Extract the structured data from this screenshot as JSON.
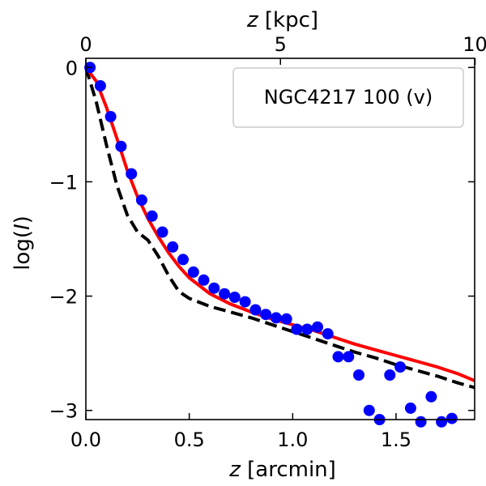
{
  "chart_data": {
    "type": "scatter",
    "title": "",
    "xlabel": {
      "var": "z",
      "unit": " [arcmin]"
    },
    "ylabel": {
      "prefix": "log(",
      "var": "I",
      "suffix": ")"
    },
    "top_xlabel": {
      "var": "z",
      "unit": " [kpc]"
    },
    "xlim": [
      0.0,
      1.88
    ],
    "ylim": [
      -3.08,
      0.08
    ],
    "x_ticks": [
      {
        "value": 0.0,
        "label": "0.0"
      },
      {
        "value": 0.5,
        "label": "0.5"
      },
      {
        "value": 1.0,
        "label": "1.0"
      },
      {
        "value": 1.5,
        "label": "1.5"
      }
    ],
    "y_ticks": [
      {
        "value": 0,
        "label": "0"
      },
      {
        "value": -1,
        "label": "−1"
      },
      {
        "value": -2,
        "label": "−2"
      },
      {
        "value": -3,
        "label": "−3"
      }
    ],
    "top_ticks": [
      {
        "value": 0.0,
        "label": "0"
      },
      {
        "value": 0.941,
        "label": "5"
      },
      {
        "value": 1.882,
        "label": "10"
      }
    ],
    "legend": {
      "label": "NGC4217 100 (v)",
      "location": "upper right"
    },
    "series": [
      {
        "name": "data",
        "kind": "scatter",
        "color": "#0000ff",
        "x": [
          0.02,
          0.07,
          0.12,
          0.17,
          0.22,
          0.27,
          0.32,
          0.37,
          0.42,
          0.47,
          0.52,
          0.57,
          0.62,
          0.67,
          0.72,
          0.77,
          0.82,
          0.87,
          0.92,
          0.97,
          1.02,
          1.07,
          1.12,
          1.17,
          1.22,
          1.27,
          1.32,
          1.37,
          1.42,
          1.47,
          1.52,
          1.57,
          1.62,
          1.67,
          1.72,
          1.77
        ],
        "y": [
          0.0,
          -0.16,
          -0.43,
          -0.69,
          -0.93,
          -1.16,
          -1.3,
          -1.44,
          -1.57,
          -1.68,
          -1.79,
          -1.86,
          -1.93,
          -1.98,
          -2.01,
          -2.05,
          -2.12,
          -2.16,
          -2.19,
          -2.2,
          -2.29,
          -2.29,
          -2.27,
          -2.33,
          -2.53,
          -2.53,
          -2.69,
          -3.0,
          -3.08,
          -2.69,
          -2.62,
          -2.98,
          -3.1,
          -2.88,
          -3.1,
          -3.07
        ]
      },
      {
        "name": "model",
        "kind": "line",
        "color": "#ff0000",
        "style": "solid",
        "x": [
          0.0,
          0.05,
          0.1,
          0.15,
          0.2,
          0.25,
          0.3,
          0.35,
          0.4,
          0.45,
          0.5,
          0.6,
          0.7,
          0.8,
          0.9,
          1.0,
          1.1,
          1.2,
          1.3,
          1.4,
          1.5,
          1.6,
          1.7,
          1.8,
          1.88
        ],
        "y": [
          0.0,
          -0.12,
          -0.35,
          -0.62,
          -0.9,
          -1.13,
          -1.32,
          -1.48,
          -1.62,
          -1.74,
          -1.84,
          -1.98,
          -2.07,
          -2.14,
          -2.2,
          -2.25,
          -2.3,
          -2.36,
          -2.42,
          -2.47,
          -2.52,
          -2.57,
          -2.62,
          -2.68,
          -2.74
        ]
      },
      {
        "name": "model-alt",
        "kind": "line",
        "color": "#000000",
        "style": "dashed",
        "x": [
          0.0,
          0.05,
          0.1,
          0.15,
          0.2,
          0.25,
          0.3,
          0.35,
          0.4,
          0.45,
          0.5,
          0.6,
          0.7,
          0.8,
          0.9,
          1.0,
          1.1,
          1.2,
          1.3,
          1.4,
          1.5,
          1.6,
          1.7,
          1.8,
          1.88
        ],
        "y": [
          0.0,
          -0.3,
          -0.68,
          -1.03,
          -1.29,
          -1.44,
          -1.51,
          -1.65,
          -1.82,
          -1.96,
          -2.02,
          -2.09,
          -2.14,
          -2.19,
          -2.25,
          -2.31,
          -2.37,
          -2.43,
          -2.49,
          -2.54,
          -2.6,
          -2.65,
          -2.7,
          -2.76,
          -2.8
        ]
      }
    ]
  }
}
